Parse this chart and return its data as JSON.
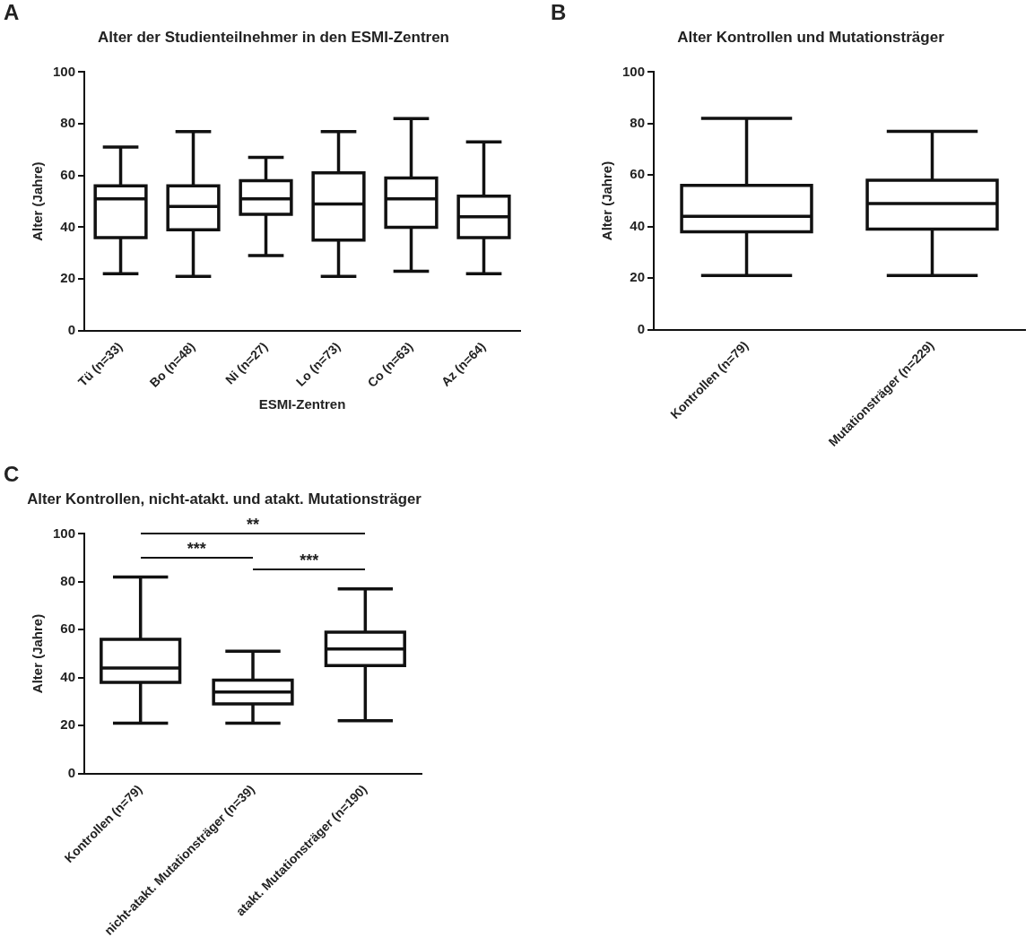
{
  "chart_data": [
    {
      "type": "box",
      "title": "Alter der Studienteilnehmer in den ESMI-Zentren",
      "xlabel": "ESMI-Zentren",
      "ylabel": "Alter (Jahre)",
      "annotations": [
        "A"
      ],
      "categories": [
        "Tü (n=33)",
        "Bo (n=48)",
        "Ni (n=27)",
        "Lo (n=73)",
        "Co (n=63)",
        "Az (n=64)"
      ],
      "boxes": [
        {
          "low": 22,
          "q1": 36,
          "median": 51,
          "q3": 56,
          "high": 71
        },
        {
          "low": 21,
          "q1": 39,
          "median": 48,
          "q3": 56,
          "high": 77
        },
        {
          "low": 29,
          "q1": 45,
          "median": 51,
          "q3": 58,
          "high": 67
        },
        {
          "low": 21,
          "q1": 35,
          "median": 49,
          "q3": 61,
          "high": 77
        },
        {
          "low": 23,
          "q1": 40,
          "median": 51,
          "q3": 59,
          "high": 82
        },
        {
          "low": 22,
          "q1": 36,
          "median": 44,
          "q3": 52,
          "high": 73
        }
      ],
      "color": "#ffffff",
      "ylim": [
        0,
        100
      ],
      "yticks": [
        0,
        20,
        40,
        60,
        80,
        100
      ],
      "grid": false,
      "legend": false
    },
    {
      "type": "box",
      "title": "Alter Kontrollen und Mutationsträger",
      "ylabel": "Alter (Jahre)",
      "annotations": [
        "B"
      ],
      "categories": [
        "Kontrollen (n=79)",
        "Mutationsträger (n=229)"
      ],
      "boxes": [
        {
          "low": 21,
          "q1": 38,
          "median": 44,
          "q3": 56,
          "high": 82
        },
        {
          "low": 21,
          "q1": 39,
          "median": 49,
          "q3": 58,
          "high": 77
        }
      ],
      "color": "#ffffff",
      "ylim": [
        0,
        100
      ],
      "yticks": [
        0,
        20,
        40,
        60,
        80,
        100
      ],
      "grid": false,
      "legend": false
    },
    {
      "type": "box",
      "title": "Alter Kontrollen, nicht-atakt. und atakt. Mutationsträger",
      "ylabel": "Alter (Jahre)",
      "annotations": [
        "C",
        "**",
        "***",
        "***"
      ],
      "categories": [
        "Kontrollen (n=79)",
        "nicht-atakt. Mutationsträger (n=39)",
        "atakt. Mutationsträger (n=190)"
      ],
      "boxes": [
        {
          "low": 21,
          "q1": 38,
          "median": 44,
          "q3": 56,
          "high": 82
        },
        {
          "low": 21,
          "q1": 29,
          "median": 34,
          "q3": 39,
          "high": 51
        },
        {
          "low": 22,
          "q1": 45,
          "median": 52,
          "q3": 59,
          "high": 77
        }
      ],
      "color": "#ffffff",
      "ylim": [
        0,
        100
      ],
      "yticks": [
        0,
        20,
        40,
        60,
        80,
        100
      ],
      "grid": false,
      "legend": false
    }
  ]
}
